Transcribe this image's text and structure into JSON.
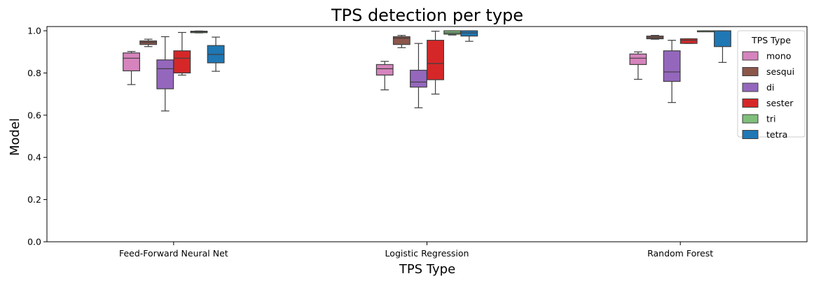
{
  "chart_data": {
    "type": "box",
    "title": "TPS detection per type",
    "xlabel": "TPS Type",
    "ylabel": "Model",
    "ylim": [
      0,
      1.0
    ],
    "yticks": [
      "0.0",
      "0.2",
      "0.4",
      "0.6",
      "0.8",
      "1.0"
    ],
    "categories": [
      "Feed-Forward Neural Net",
      "Logistic Regression",
      "Random Forest"
    ],
    "legend": {
      "title": "TPS Type",
      "placement": "top-right"
    },
    "series": [
      {
        "name": "mono",
        "color": "#d684bd",
        "boxes": [
          {
            "min": 0.745,
            "q1": 0.81,
            "median": 0.87,
            "q3": 0.895,
            "max": 0.902
          },
          {
            "min": 0.72,
            "q1": 0.79,
            "median": 0.82,
            "q3": 0.84,
            "max": 0.855
          },
          {
            "min": 0.77,
            "q1": 0.84,
            "median": 0.87,
            "q3": 0.89,
            "max": 0.9
          }
        ]
      },
      {
        "name": "sesqui",
        "color": "#8c564b",
        "boxes": [
          {
            "min": 0.925,
            "q1": 0.935,
            "median": 0.945,
            "q3": 0.952,
            "max": 0.96
          },
          {
            "min": 0.92,
            "q1": 0.935,
            "median": 0.965,
            "q3": 0.972,
            "max": 0.978
          },
          {
            "min": 0.96,
            "q1": 0.962,
            "median": 0.967,
            "q3": 0.975,
            "max": 0.978
          }
        ]
      },
      {
        "name": "di",
        "color": "#9467bd",
        "boxes": [
          {
            "min": 0.62,
            "q1": 0.725,
            "median": 0.82,
            "q3": 0.862,
            "max": 0.972
          },
          {
            "min": 0.635,
            "q1": 0.733,
            "median": 0.757,
            "q3": 0.813,
            "max": 0.94
          },
          {
            "min": 0.66,
            "q1": 0.76,
            "median": 0.805,
            "q3": 0.905,
            "max": 0.955
          }
        ]
      },
      {
        "name": "sester",
        "color": "#d62728",
        "boxes": [
          {
            "min": 0.79,
            "q1": 0.8,
            "median": 0.87,
            "q3": 0.905,
            "max": 0.992
          },
          {
            "min": 0.7,
            "q1": 0.768,
            "median": 0.845,
            "q3": 0.955,
            "max": 0.998
          },
          {
            "min": 0.94,
            "q1": 0.94,
            "median": 0.955,
            "q3": 0.962,
            "max": 0.962
          }
        ]
      },
      {
        "name": "tri",
        "color": "#7fbf7b",
        "boxes": [
          {
            "min": 0.99,
            "q1": 0.991,
            "median": 0.995,
            "q3": 0.998,
            "max": 0.999
          },
          {
            "min": 0.98,
            "q1": 0.984,
            "median": 0.99,
            "q3": 1.0,
            "max": 1.0
          },
          {
            "min": 0.998,
            "q1": 0.999,
            "median": 1.0,
            "q3": 1.0,
            "max": 1.0
          }
        ]
      },
      {
        "name": "tetra",
        "color": "#1f77b4",
        "boxes": [
          {
            "min": 0.808,
            "q1": 0.848,
            "median": 0.888,
            "q3": 0.93,
            "max": 0.97
          },
          {
            "min": 0.95,
            "q1": 0.975,
            "median": 0.99,
            "q3": 1.0,
            "max": 1.0
          },
          {
            "min": 0.85,
            "q1": 0.925,
            "median": 1.0,
            "q3": 1.0,
            "max": 1.0
          }
        ]
      }
    ]
  }
}
